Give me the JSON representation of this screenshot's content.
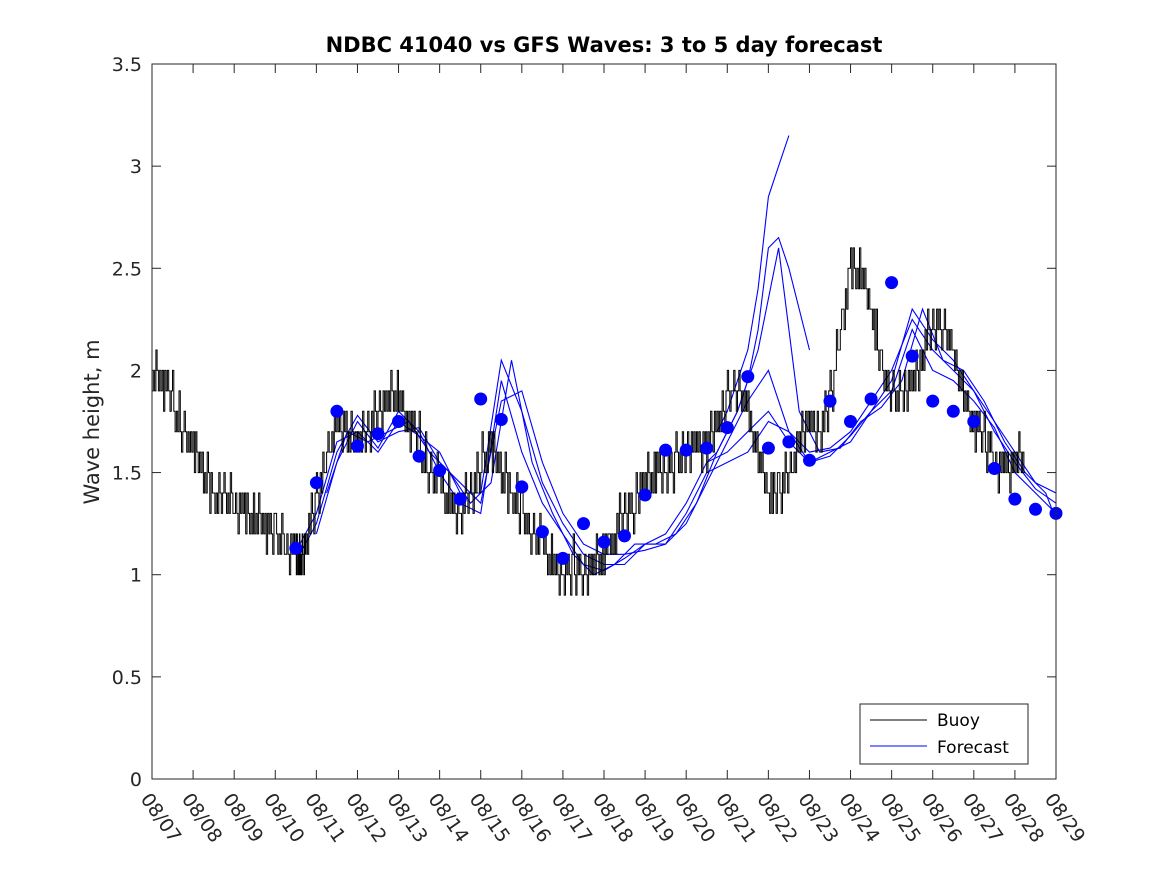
{
  "chart_data": {
    "type": "line",
    "title": "NDBC 41040 vs GFS Waves: 3 to 5 day forecast",
    "xlabel": "",
    "ylabel": "Wave height, m",
    "x_unit": "days since 08/07",
    "xlim": [
      0,
      22
    ],
    "ylim": [
      0,
      3.5
    ],
    "yticks": [
      0,
      0.5,
      1,
      1.5,
      2,
      2.5,
      3,
      3.5
    ],
    "ytick_labels": [
      "0",
      "0.5",
      "1",
      "1.5",
      "2",
      "2.5",
      "3",
      "3.5"
    ],
    "xtick_labels": [
      "08/07",
      "08/08",
      "08/09",
      "08/10",
      "08/11",
      "08/12",
      "08/13",
      "08/14",
      "08/15",
      "08/16",
      "08/17",
      "08/18",
      "08/19",
      "08/20",
      "08/21",
      "08/22",
      "08/23",
      "08/24",
      "08/25",
      "08/26",
      "08/27",
      "08/28",
      "08/29"
    ],
    "grid": false,
    "legend": {
      "location": "bottom-right",
      "entries": [
        "Buoy",
        "Forecast"
      ]
    },
    "colors": {
      "buoy": "#000000",
      "forecast": "#0000ff",
      "axes": "#262626"
    },
    "buoy": {
      "name": "Buoy",
      "x": [
        0,
        0.25,
        0.5,
        0.75,
        1,
        1.25,
        1.5,
        1.75,
        2,
        2.25,
        2.5,
        2.75,
        3,
        3.25,
        3.5,
        3.6,
        3.75,
        4,
        4.25,
        4.5,
        4.75,
        5,
        5.25,
        5.5,
        5.75,
        6,
        6.25,
        6.5,
        6.75,
        7,
        7.25,
        7.5,
        7.75,
        8,
        8.25,
        8.5,
        8.75,
        9,
        9.25,
        9.5,
        9.75,
        10,
        10.25,
        10.5,
        10.75,
        11,
        11.25,
        11.5,
        11.75,
        12,
        12.25,
        12.5,
        12.75,
        13,
        13.25,
        13.5,
        13.75,
        14,
        14.25,
        14.5,
        14.75,
        15,
        15.25,
        15.5,
        15.75,
        16,
        16.25,
        16.5,
        16.75,
        17,
        17.25,
        17.5,
        17.75,
        18,
        18.25,
        18.5,
        18.75,
        19,
        19.25,
        19.5,
        19.75,
        20,
        20.25,
        20.5,
        20.75,
        21,
        21.25
      ],
      "y": [
        2.0,
        1.95,
        1.85,
        1.7,
        1.6,
        1.5,
        1.4,
        1.35,
        1.35,
        1.3,
        1.25,
        1.25,
        1.2,
        1.15,
        1.1,
        1.05,
        1.2,
        1.35,
        1.6,
        1.75,
        1.7,
        1.65,
        1.7,
        1.8,
        1.85,
        1.85,
        1.75,
        1.65,
        1.5,
        1.45,
        1.35,
        1.3,
        1.4,
        1.55,
        1.6,
        1.5,
        1.4,
        1.3,
        1.2,
        1.15,
        1.05,
        1.0,
        1.05,
        1.0,
        1.05,
        1.1,
        1.2,
        1.3,
        1.35,
        1.45,
        1.5,
        1.5,
        1.55,
        1.6,
        1.6,
        1.65,
        1.75,
        1.85,
        1.95,
        1.8,
        1.55,
        1.4,
        1.4,
        1.5,
        1.65,
        1.75,
        1.7,
        1.85,
        2.2,
        2.5,
        2.45,
        2.3,
        2.0,
        1.9,
        1.85,
        1.95,
        2.1,
        2.2,
        2.25,
        2.05,
        1.85,
        1.75,
        1.65,
        1.55,
        1.5,
        1.55,
        1.6
      ]
    },
    "forecast_runs": [
      {
        "name": "Forecast",
        "x": [
          3.6,
          4,
          4.5,
          5,
          5.5,
          6,
          6.5,
          7,
          7.5,
          8,
          8.5,
          9,
          9.5,
          10,
          10.5,
          11,
          11.5,
          12,
          12.5,
          13,
          13.5,
          14,
          14.5,
          15,
          15.5,
          16,
          16.5,
          17,
          17.5,
          18,
          18.5,
          19,
          19.5,
          20,
          20.5,
          21,
          21.5,
          22
        ],
        "y": [
          1.1,
          1.25,
          1.6,
          1.78,
          1.65,
          1.7,
          1.72,
          1.55,
          1.45,
          1.35,
          1.85,
          1.9,
          1.55,
          1.3,
          1.15,
          1.1,
          1.1,
          1.12,
          1.15,
          1.3,
          1.5,
          1.55,
          1.6,
          1.75,
          1.7,
          1.6,
          1.62,
          1.7,
          1.85,
          2.0,
          2.25,
          2.1,
          2.0,
          1.9,
          1.75,
          1.6,
          1.45,
          1.4
        ]
      },
      {
        "name": "Forecast",
        "x": [
          3.6,
          4,
          4.5,
          5,
          5.5,
          6,
          6.5,
          7,
          7.5,
          8,
          8.5,
          9,
          9.5,
          10,
          10.5,
          11,
          11.5,
          12,
          12.5,
          13,
          13.5,
          14,
          14.5,
          15,
          15.5,
          16,
          16.5,
          17,
          17.5,
          18,
          18.5,
          19,
          19.5,
          20,
          20.5,
          21,
          21.5,
          22
        ],
        "y": [
          1.15,
          1.3,
          1.65,
          1.7,
          1.6,
          1.75,
          1.68,
          1.6,
          1.4,
          1.4,
          2.05,
          1.8,
          1.45,
          1.25,
          1.1,
          1.05,
          1.05,
          1.15,
          1.2,
          1.35,
          1.55,
          1.6,
          1.7,
          1.8,
          1.65,
          1.55,
          1.6,
          1.65,
          1.8,
          1.95,
          2.3,
          2.15,
          2.05,
          1.9,
          1.7,
          1.55,
          1.42,
          1.35
        ]
      },
      {
        "name": "Forecast",
        "x": [
          4,
          4.5,
          5,
          5.5,
          6,
          6.5,
          7,
          7.5,
          8,
          8.5,
          9,
          9.5,
          10,
          10.5,
          11,
          11.5,
          12,
          12.5,
          13,
          13.5,
          14,
          14.5,
          15,
          15.5,
          16,
          16.5,
          17,
          17.5,
          18,
          18.5,
          19,
          19.5,
          20,
          20.5,
          21,
          21.5,
          22
        ],
        "y": [
          1.2,
          1.55,
          1.75,
          1.62,
          1.8,
          1.7,
          1.5,
          1.35,
          1.3,
          1.95,
          1.6,
          1.35,
          1.2,
          1.05,
          1.02,
          1.08,
          1.15,
          1.15,
          1.25,
          1.45,
          1.65,
          1.85,
          2.0,
          1.7,
          1.55,
          1.58,
          1.68,
          1.8,
          1.9,
          2.2,
          2.0,
          1.95,
          1.85,
          1.72,
          1.5,
          1.4,
          1.3
        ]
      },
      {
        "name": "Forecast",
        "x": [
          4.25,
          4.75,
          5.25,
          5.75,
          6.25,
          6.75,
          7.25,
          7.75,
          8.25,
          8.75,
          9.25,
          9.75,
          10.25,
          10.75,
          11.25,
          11.75,
          12.25,
          12.75,
          13.25,
          13.75,
          14.25,
          14.75,
          15.25,
          15.75,
          16.25,
          16.75,
          17.25,
          17.75,
          18.25,
          18.75,
          19.25,
          19.75,
          20.25,
          20.75,
          21.25,
          21.75,
          22
        ],
        "y": [
          1.4,
          1.7,
          1.65,
          1.7,
          1.75,
          1.6,
          1.5,
          1.35,
          1.45,
          2.05,
          1.55,
          1.3,
          1.1,
          1.0,
          1.05,
          1.15,
          1.15,
          1.2,
          1.35,
          1.6,
          1.8,
          2.1,
          2.6,
          1.8,
          1.6,
          1.62,
          1.75,
          1.82,
          1.95,
          2.3,
          2.05,
          2.0,
          1.85,
          1.65,
          1.5,
          1.4,
          1.27
        ]
      },
      {
        "name": "Forecast",
        "x": [
          13.5,
          13.75,
          14,
          14.25,
          14.5,
          14.75,
          15,
          15.25,
          15.5,
          15.75,
          16
        ],
        "y": [
          1.55,
          1.6,
          1.7,
          1.8,
          1.95,
          2.2,
          2.6,
          2.65,
          2.5,
          2.3,
          2.1
        ]
      },
      {
        "name": "Forecast",
        "x": [
          13.75,
          14,
          14.25,
          14.5,
          14.75,
          15,
          15.25,
          15.5
        ],
        "y": [
          1.7,
          1.8,
          1.95,
          2.1,
          2.4,
          2.85,
          3.0,
          3.15
        ]
      }
    ],
    "forecast_points": {
      "name": "Forecast",
      "x": [
        3.5,
        4,
        4.5,
        5,
        5.5,
        6,
        6.5,
        7,
        7.5,
        8,
        8.5,
        9,
        9.5,
        10,
        10.5,
        11,
        11.5,
        12,
        12.5,
        13,
        13.5,
        14,
        14.5,
        15,
        15.5,
        16,
        16.5,
        17,
        17.5,
        18,
        18.5,
        19,
        19.5,
        20,
        20.5,
        21,
        21.5,
        22
      ],
      "y": [
        1.13,
        1.45,
        1.8,
        1.63,
        1.69,
        1.75,
        1.58,
        1.51,
        1.37,
        1.86,
        1.76,
        1.43,
        1.21,
        1.08,
        1.25,
        1.16,
        1.19,
        1.39,
        1.61,
        1.61,
        1.62,
        1.72,
        1.97,
        1.62,
        1.65,
        1.56,
        1.85,
        1.75,
        1.86,
        2.43,
        2.07,
        1.85,
        1.8,
        1.75,
        1.52,
        1.37,
        1.32,
        1.3
      ]
    }
  }
}
